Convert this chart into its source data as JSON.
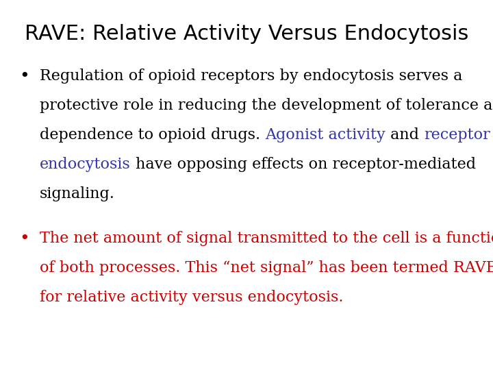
{
  "title": "RAVE: Relative Activity Versus Endocytosis",
  "title_color": "#000000",
  "title_fontsize": 22,
  "title_font": "DejaVu Sans",
  "background_color": "#ffffff",
  "body_fontsize": 16,
  "body_font": "DejaVu Serif",
  "black": "#000000",
  "blue": "#3333AA",
  "red": "#CC0000",
  "bullet1_lines": [
    [
      [
        "Regulation of opioid receptors by endocytosis serves a",
        "#000000"
      ]
    ],
    [
      [
        "protective role in reducing the development of tolerance and",
        "#000000"
      ]
    ],
    [
      [
        "dependence to opioid drugs. ",
        "#000000"
      ],
      [
        "Agonist activity",
        "#3333AA"
      ],
      [
        " and ",
        "#000000"
      ],
      [
        "receptor",
        "#3333AA"
      ]
    ],
    [
      [
        "endocytosis",
        "#3333AA"
      ],
      [
        " have opposing effects on receptor-mediated",
        "#000000"
      ]
    ],
    [
      [
        "signaling.",
        "#000000"
      ]
    ]
  ],
  "bullet2_lines": [
    "The net amount of signal transmitted to the cell is a function",
    "of both processes. This “net signal” has been termed RAVE,",
    "for relative activity versus endocytosis."
  ],
  "bullet2_color": "#CC0000"
}
